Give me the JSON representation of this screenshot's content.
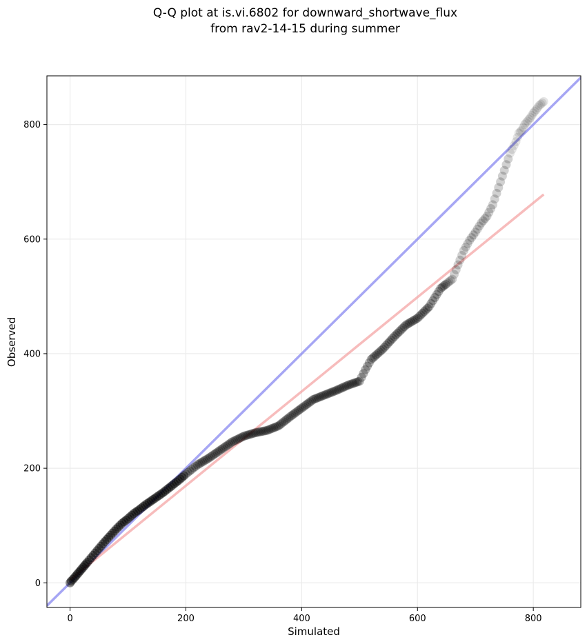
{
  "chart_data": {
    "type": "scatter",
    "title": "Q-Q plot at is.vi.6802 for downward_shortwave_flux",
    "subtitle": "from rav2-14-15 during summer",
    "xlabel": "Simulated",
    "ylabel": "Observed",
    "xlim": [
      -40,
      882
    ],
    "ylim": [
      -43,
      885
    ],
    "xticks": [
      0,
      200,
      400,
      600,
      800
    ],
    "yticks": [
      0,
      200,
      400,
      600,
      800
    ],
    "grid": true,
    "points": {
      "x": [
        0,
        2,
        5,
        10,
        15,
        20,
        25,
        30,
        40,
        50,
        60,
        70,
        80,
        90,
        100,
        110,
        120,
        130,
        140,
        150,
        160,
        170,
        180,
        190,
        200,
        210,
        220,
        240,
        260,
        280,
        300,
        320,
        340,
        360,
        380,
        400,
        420,
        440,
        460,
        480,
        500,
        510,
        520,
        540,
        560,
        580,
        600,
        620,
        630,
        640,
        660,
        670,
        680,
        690,
        700,
        710,
        720,
        730,
        740,
        750,
        760,
        770,
        775,
        780,
        785,
        790,
        795,
        800,
        805,
        810,
        818
      ],
      "y": [
        0,
        3,
        6,
        12,
        18,
        24,
        30,
        36,
        48,
        60,
        72,
        83,
        94,
        104,
        112,
        121,
        128,
        136,
        143,
        150,
        157,
        165,
        173,
        181,
        190,
        198,
        206,
        218,
        232,
        246,
        256,
        262,
        266,
        274,
        290,
        305,
        320,
        328,
        336,
        345,
        352,
        372,
        390,
        408,
        430,
        450,
        462,
        482,
        498,
        514,
        530,
        555,
        580,
        598,
        612,
        628,
        640,
        660,
        690,
        720,
        750,
        770,
        785,
        790,
        800,
        806,
        812,
        820,
        826,
        833,
        840
      ]
    },
    "reference_lines": [
      {
        "from": [
          -40,
          -40
        ],
        "to": [
          882,
          882
        ],
        "color": "#8080f0"
      },
      {
        "from": [
          0,
          5
        ],
        "to": [
          818,
          678
        ],
        "color": "#f4a0a0"
      }
    ],
    "colors": {
      "points": "#000000",
      "identity": "#8080f0",
      "fit": "#f4a0a0",
      "grid": "#ebebeb"
    }
  }
}
